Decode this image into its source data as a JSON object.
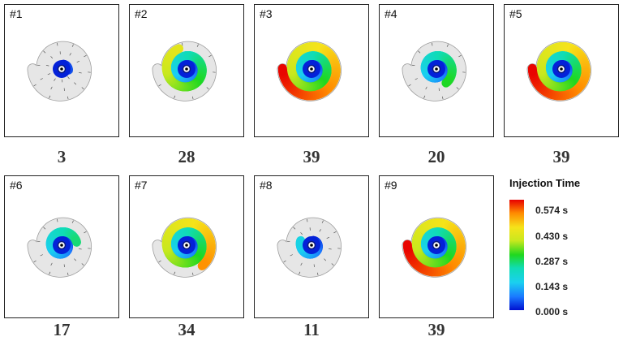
{
  "panels": [
    {
      "label": "#1",
      "value": "3",
      "fill_fraction": 0.08
    },
    {
      "label": "#2",
      "value": "28",
      "fill_fraction": 0.7
    },
    {
      "label": "#3",
      "value": "39",
      "fill_fraction": 1.0
    },
    {
      "label": "#4",
      "value": "20",
      "fill_fraction": 0.5
    },
    {
      "label": "#5",
      "value": "39",
      "fill_fraction": 1.0
    },
    {
      "label": "#6",
      "value": "17",
      "fill_fraction": 0.43
    },
    {
      "label": "#7",
      "value": "34",
      "fill_fraction": 0.87
    },
    {
      "label": "#8",
      "value": "11",
      "fill_fraction": 0.28
    },
    {
      "label": "#9",
      "value": "39",
      "fill_fraction": 1.0
    }
  ],
  "legend": {
    "title": "Injection Time",
    "ticks": [
      "0.574 s",
      "0.430 s",
      "0.287 s",
      "0.143 s",
      "0.000 s"
    ]
  },
  "colors": {
    "unfilled": "#e6e6e6",
    "border": "#222222",
    "scale": [
      "#0010d0",
      "#1a78ff",
      "#1ad0f0",
      "#10dcb5",
      "#1fd81f",
      "#c9e81e",
      "#f6e31a",
      "#ff8a00",
      "#e80000"
    ]
  }
}
